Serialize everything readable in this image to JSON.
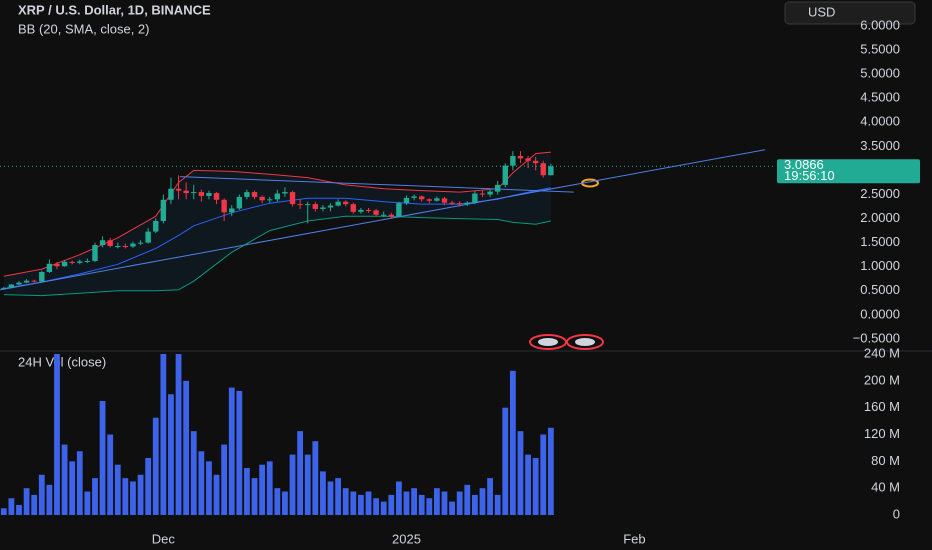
{
  "chart_data": [
    {
      "type": "candlestick",
      "title": "XRP / U.S. Dollar, 1D, BINANCE",
      "currency": "USD",
      "up_color": "#22ab94",
      "down_color": "#f23645",
      "xlim": [
        -0.5,
        101.5
      ],
      "ylim": [
        -0.73,
        6.54
      ],
      "yticks": [
        {
          "value": 6,
          "label": "6.0000"
        },
        {
          "value": 5.5,
          "label": "5.5000"
        },
        {
          "value": 5,
          "label": "5.0000"
        },
        {
          "value": 4.5,
          "label": "4.5000"
        },
        {
          "value": 4,
          "label": "4.0000"
        },
        {
          "value": 3.5,
          "label": "3.5000"
        },
        {
          "value": 2.5,
          "label": "2.5000"
        },
        {
          "value": 2,
          "label": "2.0000"
        },
        {
          "value": 1.5,
          "label": "1.5000"
        },
        {
          "value": 1,
          "label": "1.0000"
        },
        {
          "value": 0.5,
          "label": "0.5000"
        },
        {
          "value": 0,
          "label": "0.0000"
        },
        {
          "value": -0.5,
          "label": "−0.5000"
        }
      ],
      "open": [
        0.55,
        0.56,
        0.63,
        0.67,
        0.71,
        0.69,
        0.89,
        1.06,
        1.01,
        1.1,
        1.08,
        1.11,
        1.12,
        1.45,
        1.55,
        1.43,
        1.43,
        1.42,
        1.48,
        1.5,
        1.73,
        1.95,
        2.39,
        2.62,
        2.58,
        2.53,
        2.55,
        2.47,
        2.53,
        2.39,
        2.13,
        2.21,
        2.45,
        2.55,
        2.45,
        2.38,
        2.4,
        2.52,
        2.55,
        2.3,
        2.28,
        2.3,
        2.2,
        2.23,
        2.27,
        2.35,
        2.3,
        2.14,
        2.18,
        2.17,
        2.08,
        2.08,
        2.04,
        2.32,
        2.43,
        2.46,
        2.4,
        2.37,
        2.42,
        2.33,
        2.32,
        2.3,
        2.33,
        2.52,
        2.5,
        2.56,
        2.7,
        3.1,
        3.3,
        3.25,
        3.2,
        3.15,
        2.9
      ],
      "high": [
        0.58,
        0.64,
        0.7,
        0.74,
        0.73,
        0.92,
        1.15,
        1.1,
        1.14,
        1.13,
        1.15,
        1.17,
        1.5,
        1.63,
        1.6,
        1.5,
        1.48,
        1.52,
        1.55,
        1.8,
        2.0,
        2.5,
        2.85,
        2.9,
        2.75,
        2.7,
        2.6,
        2.58,
        2.55,
        2.42,
        2.28,
        2.5,
        2.6,
        2.58,
        2.48,
        2.45,
        2.6,
        2.65,
        2.58,
        2.4,
        2.35,
        2.35,
        2.28,
        2.32,
        2.4,
        2.38,
        2.33,
        2.22,
        2.22,
        2.2,
        2.15,
        2.12,
        2.35,
        2.48,
        2.5,
        2.48,
        2.42,
        2.46,
        2.45,
        2.37,
        2.36,
        2.36,
        2.58,
        2.6,
        2.6,
        2.78,
        3.15,
        3.4,
        3.4,
        3.3,
        3.28,
        3.2,
        3.14
      ],
      "low": [
        0.54,
        0.55,
        0.62,
        0.66,
        0.67,
        0.68,
        0.87,
        0.95,
        1.0,
        1.05,
        1.05,
        1.08,
        1.1,
        1.4,
        1.4,
        1.38,
        1.38,
        1.39,
        1.45,
        1.48,
        1.7,
        1.9,
        2.3,
        2.4,
        2.4,
        2.4,
        2.35,
        2.4,
        2.3,
        1.95,
        2.05,
        2.18,
        2.4,
        2.4,
        2.32,
        2.33,
        2.35,
        2.45,
        2.25,
        2.2,
        1.9,
        2.15,
        2.15,
        2.15,
        2.25,
        2.25,
        2.1,
        2.1,
        2.12,
        2.05,
        2.03,
        2.0,
        2.02,
        2.28,
        2.38,
        2.35,
        2.32,
        2.35,
        2.28,
        2.28,
        2.25,
        2.26,
        2.3,
        2.45,
        2.45,
        2.5,
        2.65,
        3.0,
        3.15,
        3.05,
        3.0,
        2.85,
        2.9
      ],
      "close": [
        0.56,
        0.63,
        0.67,
        0.71,
        0.69,
        0.89,
        1.06,
        1.01,
        1.1,
        1.08,
        1.11,
        1.12,
        1.45,
        1.55,
        1.43,
        1.43,
        1.42,
        1.48,
        1.5,
        1.73,
        1.95,
        2.39,
        2.62,
        2.58,
        2.53,
        2.55,
        2.47,
        2.53,
        2.39,
        2.13,
        2.21,
        2.45,
        2.55,
        2.45,
        2.38,
        2.4,
        2.52,
        2.55,
        2.3,
        2.28,
        2.3,
        2.2,
        2.23,
        2.27,
        2.35,
        2.3,
        2.14,
        2.18,
        2.17,
        2.08,
        2.08,
        2.04,
        2.32,
        2.43,
        2.46,
        2.4,
        2.37,
        2.42,
        2.33,
        2.32,
        2.3,
        2.33,
        2.52,
        2.5,
        2.56,
        2.7,
        3.1,
        3.3,
        3.25,
        3.2,
        3.15,
        2.9,
        3.0866
      ],
      "bollinger": {
        "label": "BB (20, SMA, close, 2)",
        "upper_color": "#f23645",
        "basis_color": "#2962ff",
        "lower_color": "#089981",
        "x": [
          0,
          5,
          10,
          15,
          20,
          23,
          25,
          30,
          35,
          40,
          45,
          50,
          55,
          60,
          65,
          67,
          70,
          72
        ],
        "upper": [
          0.8,
          0.95,
          1.25,
          1.6,
          2.05,
          2.75,
          3.0,
          2.98,
          2.92,
          2.85,
          2.7,
          2.62,
          2.58,
          2.55,
          2.62,
          2.95,
          3.35,
          3.38
        ],
        "basis": [
          0.55,
          0.68,
          0.85,
          1.05,
          1.38,
          1.65,
          1.85,
          2.12,
          2.32,
          2.42,
          2.42,
          2.35,
          2.3,
          2.3,
          2.4,
          2.48,
          2.58,
          2.64
        ],
        "lower": [
          0.42,
          0.4,
          0.45,
          0.5,
          0.5,
          0.52,
          0.7,
          1.3,
          1.75,
          1.95,
          2.05,
          2.05,
          2.02,
          2.0,
          1.98,
          1.92,
          1.88,
          1.95
        ]
      },
      "trendlines": [
        {
          "color": "#4f7fe8",
          "x": [
            -0.5,
            100.2
          ],
          "y": [
            0.52,
            3.43
          ]
        },
        {
          "color": "#4f7fe8",
          "x": [
            23.2,
            75
          ],
          "y": [
            2.87,
            2.55
          ]
        }
      ],
      "last_price": 3.0866,
      "countdown": "19:56:10"
    },
    {
      "type": "bar",
      "title": "24H Vol (close)",
      "color": "#3d63e8",
      "ylim": [
        -14900000,
        243000000
      ],
      "yticks": [
        0,
        {
          "value": 40000000,
          "label": "40 M"
        },
        {
          "value": 80000000,
          "label": "80 M"
        },
        {
          "value": 120000000,
          "label": "120 M"
        },
        {
          "value": 160000000,
          "label": "160 M"
        },
        {
          "value": 200000000,
          "label": "200 M"
        },
        {
          "value": 240000000,
          "label": "240 M"
        }
      ],
      "xticks": [
        {
          "value": 21,
          "label": "Dec"
        },
        {
          "value": 53,
          "label": "2025"
        },
        {
          "value": 83,
          "label": "Feb"
        }
      ],
      "values": [
        10000000,
        25000000,
        15000000,
        40000000,
        30000000,
        60000000,
        45000000,
        240000000,
        105000000,
        80000000,
        95000000,
        35000000,
        55000000,
        170000000,
        120000000,
        75000000,
        55000000,
        50000000,
        60000000,
        85000000,
        145000000,
        240000000,
        180000000,
        240000000,
        200000000,
        125000000,
        95000000,
        80000000,
        60000000,
        105000000,
        190000000,
        185000000,
        70000000,
        55000000,
        75000000,
        80000000,
        40000000,
        35000000,
        90000000,
        125000000,
        90000000,
        110000000,
        65000000,
        50000000,
        55000000,
        40000000,
        35000000,
        30000000,
        35000000,
        25000000,
        20000000,
        30000000,
        50000000,
        35000000,
        40000000,
        30000000,
        25000000,
        40000000,
        35000000,
        20000000,
        35000000,
        45000000,
        30000000,
        40000000,
        55000000,
        30000000,
        160000000,
        215000000,
        125000000,
        90000000,
        85000000,
        120000000,
        130000000
      ]
    }
  ]
}
